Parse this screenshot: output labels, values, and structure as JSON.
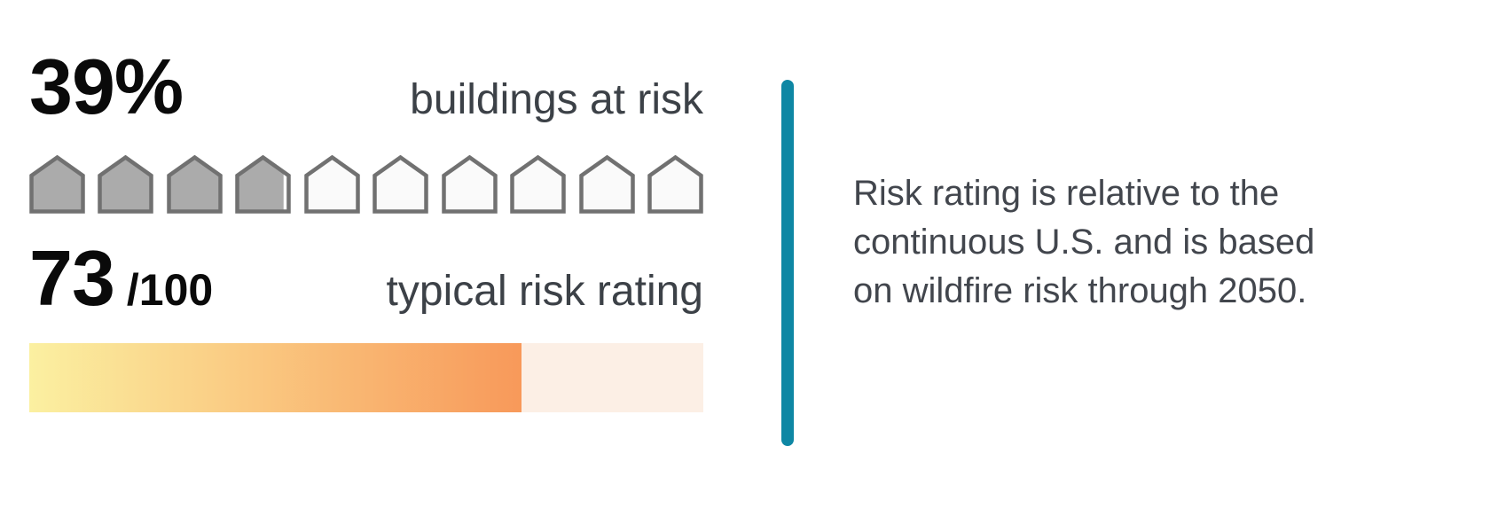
{
  "buildings_at_risk": {
    "value": "39%",
    "label": "buildings at risk",
    "houses_total": 10,
    "filled_units": 3.9
  },
  "risk_rating": {
    "value": "73",
    "denominator": "/100",
    "label": "typical risk rating",
    "bar_fill_percent": 73
  },
  "note": "Risk rating is relative to the\ncontinuous U.S. and is based\non wildfire risk through 2050.",
  "colors": {
    "divider": "#0e87a4",
    "house_filled_fill": "#ababab",
    "house_empty_fill": "#fafafa",
    "house_stroke": "#717171",
    "bar_gradient_start": "#fbf0a1",
    "bar_gradient_end": "#f8995a",
    "bar_empty": "#fcefe5",
    "big_text": "#0a0a0a",
    "label_text": "#3c4147",
    "note_text": "#42464d"
  },
  "chart_data": [
    {
      "type": "pictograph",
      "title": "buildings at risk",
      "value_percent": 39,
      "icon": "house",
      "icons_total": 10,
      "icons_filled": 3.9,
      "filled_color": "#ababab",
      "empty_color": "#fafafa"
    },
    {
      "type": "bar",
      "title": "typical risk rating",
      "value": 73,
      "max": 100,
      "fill_percent": 73,
      "fill_gradient": [
        "#fbf0a1",
        "#f8995a"
      ],
      "track_color": "#fcefe5"
    }
  ]
}
